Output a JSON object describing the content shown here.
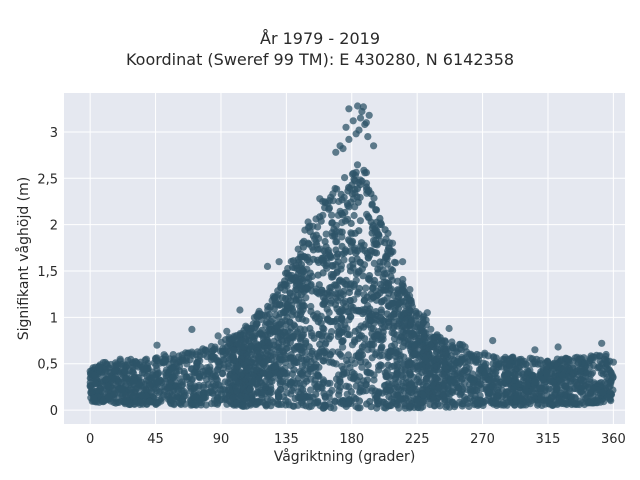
{
  "chart_data": {
    "type": "scatter",
    "title": "År 1979 - 2019",
    "subtitle": "Koordinat (Sweref 99 TM): E 430280, N 6142358",
    "xlabel": "Vågriktning (grader)",
    "ylabel": "Signifikant våghöjd (m)",
    "xlim": [
      -18,
      368
    ],
    "ylim": [
      -0.15,
      3.42
    ],
    "xticks": [
      0,
      45,
      90,
      135,
      180,
      225,
      270,
      315,
      360
    ],
    "xtick_labels": [
      "0",
      "45",
      "90",
      "135",
      "180",
      "225",
      "270",
      "315",
      "360"
    ],
    "yticks": [
      0,
      0.5,
      1,
      1.5,
      2,
      2.5,
      3
    ],
    "ytick_labels": [
      "0",
      "0,5",
      "1",
      "1,5",
      "2",
      "2,5",
      "3"
    ],
    "grid": true,
    "marker_color": "#2e5468",
    "background_color": "#e5e8f0",
    "x": [
      0,
      5,
      10,
      15,
      20,
      25,
      30,
      35,
      40,
      45,
      50,
      55,
      60,
      65,
      70,
      75,
      80,
      85,
      90,
      95,
      100,
      105,
      110,
      115,
      120,
      125,
      130,
      135,
      140,
      145,
      150,
      155,
      160,
      165,
      170,
      175,
      180,
      185,
      190,
      195,
      200,
      205,
      210,
      215,
      220,
      225,
      230,
      235,
      240,
      245,
      250,
      255,
      260,
      265,
      270,
      275,
      280,
      285,
      290,
      295,
      300,
      305,
      310,
      315,
      320,
      325,
      330,
      335,
      340,
      345,
      350,
      355,
      360
    ],
    "y_min": [
      0.1,
      0.08,
      0.08,
      0.07,
      0.07,
      0.06,
      0.06,
      0.06,
      0.05,
      0.05,
      0.05,
      0.05,
      0.05,
      0.05,
      0.05,
      0.05,
      0.05,
      0.05,
      0.05,
      0.05,
      0.05,
      0.04,
      0.04,
      0.04,
      0.04,
      0.03,
      0.03,
      0.03,
      0.03,
      0.03,
      0.02,
      0.02,
      0.02,
      0.02,
      0.02,
      0.02,
      0.02,
      0.02,
      0.02,
      0.02,
      0.02,
      0.02,
      0.02,
      0.02,
      0.02,
      0.02,
      0.03,
      0.03,
      0.03,
      0.03,
      0.03,
      0.04,
      0.04,
      0.04,
      0.04,
      0.05,
      0.05,
      0.05,
      0.05,
      0.05,
      0.05,
      0.05,
      0.05,
      0.05,
      0.05,
      0.05,
      0.06,
      0.06,
      0.06,
      0.07,
      0.07,
      0.08,
      0.1
    ],
    "y_max": [
      0.45,
      0.5,
      0.52,
      0.55,
      0.55,
      0.55,
      0.55,
      0.55,
      0.55,
      0.58,
      0.6,
      0.6,
      0.62,
      0.62,
      0.65,
      0.65,
      0.68,
      0.7,
      0.75,
      0.78,
      0.82,
      0.88,
      0.95,
      1.05,
      1.12,
      1.22,
      1.35,
      1.55,
      1.72,
      1.88,
      2.05,
      2.18,
      2.25,
      2.32,
      2.45,
      2.55,
      2.65,
      2.72,
      2.6,
      2.3,
      2.15,
      1.95,
      1.65,
      1.42,
      1.25,
      1.12,
      1.02,
      0.92,
      0.85,
      0.8,
      0.75,
      0.72,
      0.68,
      0.65,
      0.62,
      0.6,
      0.6,
      0.58,
      0.58,
      0.57,
      0.56,
      0.56,
      0.55,
      0.55,
      0.55,
      0.56,
      0.56,
      0.57,
      0.58,
      0.6,
      0.6,
      0.58,
      0.52
    ],
    "outliers": [
      {
        "x": 178,
        "y": 3.25
      },
      {
        "x": 184,
        "y": 3.28
      },
      {
        "x": 188,
        "y": 3.27
      },
      {
        "x": 187,
        "y": 3.22
      },
      {
        "x": 186,
        "y": 3.15
      },
      {
        "x": 181,
        "y": 3.12
      },
      {
        "x": 190,
        "y": 3.1
      },
      {
        "x": 189,
        "y": 3.08
      },
      {
        "x": 176,
        "y": 3.05
      },
      {
        "x": 185,
        "y": 3.02
      },
      {
        "x": 192,
        "y": 3.18
      },
      {
        "x": 183,
        "y": 2.98
      },
      {
        "x": 178,
        "y": 2.92
      },
      {
        "x": 191,
        "y": 2.95
      },
      {
        "x": 172,
        "y": 2.85
      },
      {
        "x": 174,
        "y": 2.82
      },
      {
        "x": 195,
        "y": 2.85
      },
      {
        "x": 169,
        "y": 2.78
      },
      {
        "x": 160,
        "y": 2.25
      },
      {
        "x": 158,
        "y": 2.28
      },
      {
        "x": 208,
        "y": 1.8
      },
      {
        "x": 215,
        "y": 1.6
      },
      {
        "x": 220,
        "y": 1.3
      },
      {
        "x": 232,
        "y": 1.05
      },
      {
        "x": 247,
        "y": 0.88
      },
      {
        "x": 70,
        "y": 0.87
      },
      {
        "x": 88,
        "y": 0.8
      },
      {
        "x": 94,
        "y": 0.85
      },
      {
        "x": 352,
        "y": 0.72
      },
      {
        "x": 355,
        "y": 0.6
      },
      {
        "x": 277,
        "y": 0.75
      },
      {
        "x": 306,
        "y": 0.65
      },
      {
        "x": 322,
        "y": 0.68
      },
      {
        "x": 46,
        "y": 0.7
      },
      {
        "x": 103,
        "y": 1.08
      },
      {
        "x": 122,
        "y": 1.55
      },
      {
        "x": 130,
        "y": 1.6
      }
    ]
  }
}
